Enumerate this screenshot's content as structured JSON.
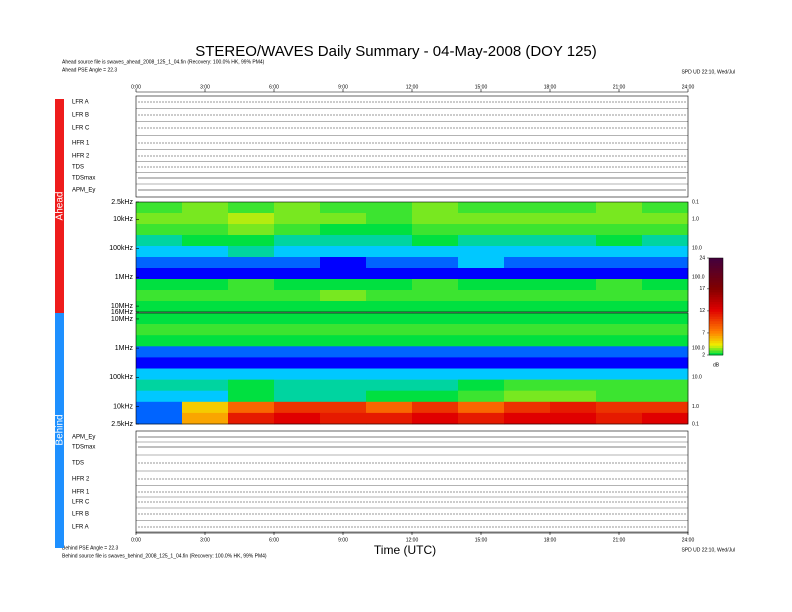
{
  "chart_data": {
    "type": "spectrogram",
    "title": "STEREO/WAVES Daily Summary - 04-May-2008 (DOY 125)",
    "header_lines": [
      "Ahead source file is swaves_ahead_2008_125_1_04.fin (Recovery: 100.0% HK, 99% PM4)",
      "Ahead PSE Angle = 22.3"
    ],
    "header_right": "SPD UD 22:10, Wed/Jul",
    "footer_lines": [
      "Behind PSE Angle = 22.3",
      "Behind source file is swaves_behind_2008_125_1_04.fin (Recovery: 100.0% HK, 99% PM4)"
    ],
    "footer_right": "SPD UD 22:10, Wed/Jul",
    "xlabel": "Time (UTC)",
    "xlim": [
      0,
      24
    ],
    "xticks": [
      {
        "value": 0,
        "label": "0:00"
      },
      {
        "value": 3,
        "label": "3:00"
      },
      {
        "value": 6,
        "label": "6:00"
      },
      {
        "value": 9,
        "label": "9:00"
      },
      {
        "value": 12,
        "label": "12:00"
      },
      {
        "value": 15,
        "label": "15:00"
      },
      {
        "value": 18,
        "label": "18:00"
      },
      {
        "value": 21,
        "label": "21:00"
      },
      {
        "value": 24,
        "label": "24:00"
      }
    ],
    "zlim": [
      2,
      24
    ],
    "zticks": [
      2,
      7,
      12,
      17,
      24
    ],
    "zlabel": "dB",
    "strips": [
      {
        "spacecraft": "Ahead",
        "labels": [
          "LFR A",
          "LFR B",
          "LFR C",
          "HFR 1",
          "HFR 2",
          "TDS",
          "TDSmax",
          "APM_Ey"
        ]
      },
      {
        "spacecraft": "Behind",
        "labels": [
          "APM_Ey",
          "TDSmax",
          "TDS",
          "HFR 2",
          "HFR 1",
          "LFR C",
          "LFR B",
          "LFR A"
        ]
      }
    ],
    "panels": [
      {
        "name": "Ahead",
        "color": "#ee1c1c",
        "log": true,
        "ylim": [
          2500,
          16000000
        ],
        "yticks": [
          {
            "value": 2500,
            "label": "2.5kHz"
          },
          {
            "value": 10000,
            "label": "10kHz"
          },
          {
            "value": 100000,
            "label": "100kHz"
          },
          {
            "value": 1000000,
            "label": "1MHz"
          },
          {
            "value": 10000000,
            "label": "10MHz"
          },
          {
            "value": 16000000,
            "label": "16MHz"
          }
        ],
        "right_labels": [
          "0.1",
          "1.0",
          "10.0",
          "100.0"
        ],
        "values": [
          [
            2.5,
            3,
            2.5,
            3,
            2.5,
            2.5,
            3,
            2.5,
            2.5,
            2.5,
            3,
            2.5
          ],
          [
            3,
            3,
            3.5,
            3,
            3,
            2.5,
            3,
            3,
            3,
            3,
            3,
            3
          ],
          [
            2.5,
            2.5,
            3,
            2.5,
            2,
            2,
            2.5,
            2.5,
            2.5,
            2.5,
            2.5,
            2.5
          ],
          [
            1.5,
            2,
            2,
            1.5,
            1.5,
            1.5,
            2,
            1.5,
            1.5,
            1.5,
            2,
            1.5
          ],
          [
            1,
            1,
            1.5,
            1,
            1,
            1,
            1,
            1,
            1,
            1,
            1,
            1
          ],
          [
            0.5,
            0.5,
            0.5,
            0.5,
            0,
            0.5,
            0.5,
            1,
            0.5,
            0.5,
            0.5,
            0.5
          ],
          [
            0,
            0,
            0,
            0,
            0,
            0,
            0,
            0,
            0,
            0,
            0,
            0
          ],
          [
            2,
            2,
            2.5,
            2,
            2,
            2,
            2.5,
            2,
            2,
            2,
            2.5,
            2
          ],
          [
            2.5,
            2.5,
            2.5,
            2.5,
            3,
            2.5,
            2.5,
            2.5,
            2.5,
            2.5,
            2.5,
            2.5
          ],
          [
            2,
            2,
            2,
            2,
            2,
            2,
            2,
            2,
            2,
            2,
            2,
            2
          ]
        ]
      },
      {
        "name": "Behind",
        "color": "#1e90ff",
        "log": true,
        "ylim": [
          16000000,
          2500
        ],
        "yticks": [
          {
            "value": 10000000,
            "label": "10MHz"
          },
          {
            "value": 1000000,
            "label": "1MHz"
          },
          {
            "value": 100000,
            "label": "100kHz"
          },
          {
            "value": 10000,
            "label": "10kHz"
          },
          {
            "value": 2500,
            "label": "2.5kHz"
          }
        ],
        "right_labels": [
          "0.1",
          "1.0",
          "10.0",
          "100.0"
        ],
        "values": [
          [
            2,
            2,
            2,
            2,
            2,
            2,
            2,
            2,
            2,
            2,
            2,
            2
          ],
          [
            2.5,
            2.5,
            2.5,
            2.5,
            2.5,
            2.5,
            2.5,
            2.5,
            2.5,
            2.5,
            2.5,
            2.5
          ],
          [
            2,
            2,
            2,
            2,
            2,
            2,
            2,
            2,
            2,
            2,
            2,
            2
          ],
          [
            0.5,
            0.5,
            0.5,
            0.5,
            0.5,
            0.5,
            0.5,
            0.5,
            0.5,
            0.5,
            0.5,
            0.5
          ],
          [
            0,
            0,
            0,
            0,
            0,
            0,
            0,
            0,
            0,
            0,
            0,
            0
          ],
          [
            1,
            1,
            1,
            1,
            1,
            1,
            1,
            1,
            1,
            1,
            1,
            1
          ],
          [
            1.5,
            1.5,
            2,
            1.5,
            1.5,
            1.5,
            1.5,
            2,
            2.5,
            2.5,
            2.5,
            2.5
          ],
          [
            1,
            1,
            2,
            1.5,
            1.5,
            2,
            2,
            2.5,
            3,
            3,
            2.5,
            2.5
          ],
          [
            0.5,
            5,
            8,
            10,
            10,
            8,
            10,
            8,
            10,
            11,
            10,
            10
          ],
          [
            0.5,
            6,
            11,
            12,
            11,
            11,
            12,
            11,
            12,
            12,
            11,
            12
          ]
        ]
      }
    ]
  }
}
